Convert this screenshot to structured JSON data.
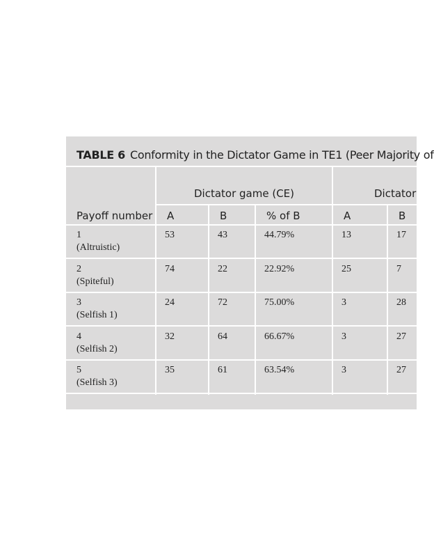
{
  "title": {
    "label": "TABLE 6",
    "text": "Conformity in the Dictator Game in TE1 (Peer Majority of"
  },
  "table": {
    "group_headers": [
      "Dictator game (CE)",
      "Dictator"
    ],
    "columns": [
      "Payoff number",
      "A",
      "B",
      "% of B",
      "A",
      "B"
    ],
    "rows": [
      {
        "number": "1",
        "label": "(Altruistic)",
        "cells": [
          "53",
          "43",
          "44.79%",
          "13",
          "17"
        ]
      },
      {
        "number": "2",
        "label": "(Spiteful)",
        "cells": [
          "74",
          "22",
          "22.92%",
          "25",
          "7"
        ]
      },
      {
        "number": "3",
        "label": "(Selfish 1)",
        "cells": [
          "24",
          "72",
          "75.00%",
          "3",
          "28"
        ]
      },
      {
        "number": "4",
        "label": "(Selfish 2)",
        "cells": [
          "32",
          "64",
          "66.67%",
          "3",
          "27"
        ]
      },
      {
        "number": "5",
        "label": "(Selfish 3)",
        "cells": [
          "35",
          "61",
          "63.54%",
          "3",
          "27"
        ]
      }
    ]
  }
}
